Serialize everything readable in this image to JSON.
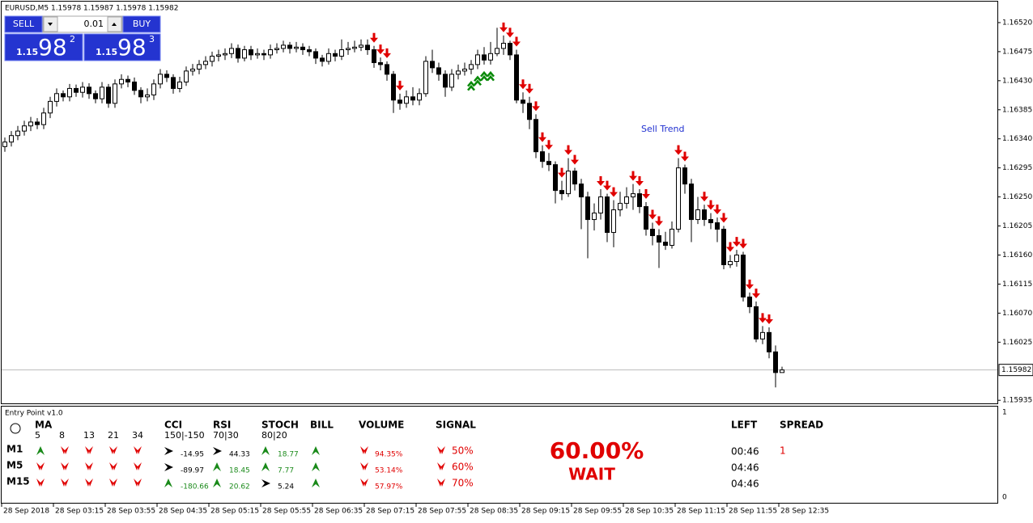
{
  "window": {
    "title": "EURUSD,M5  1.15978 1.15987 1.15978 1.15982"
  },
  "trade_panel": {
    "sell": "SELL",
    "buy": "BUY",
    "lot": "0.01",
    "sell_big": "1.15",
    "sell_pips": "98",
    "sell_point": "2",
    "buy_big": "1.15",
    "buy_pips": "98",
    "buy_point": "3"
  },
  "chart_data": {
    "type": "candlestick",
    "annotation": "Sell Trend",
    "ylim": [
      1.15929,
      1.16555
    ],
    "yticks": [
      {
        "value": 1.1652,
        "label": "1.16520"
      },
      1.16475,
      {
        "value": 1.1643,
        "label": "1.16430"
      },
      1.16385,
      {
        "value": 1.1634,
        "label": "1.16340"
      },
      1.16295,
      {
        "value": 1.1625,
        "label": "1.16250"
      },
      1.16205,
      {
        "value": 1.1616,
        "label": "1.16160"
      },
      1.16115,
      {
        "value": 1.1607,
        "label": "1.16070"
      },
      1.16025,
      1.15935
    ],
    "current_price": 1.15982,
    "time_labels": [
      "28 Sep 2018",
      "28 Sep 03:15",
      "28 Sep 03:55",
      "28 Sep 04:35",
      "28 Sep 05:15",
      "28 Sep 05:55",
      "28 Sep 06:35",
      "28 Sep 07:15",
      "28 Sep 07:55",
      "28 Sep 08:35",
      "28 Sep 09:15",
      "28 Sep 09:55",
      "28 Sep 10:35",
      "28 Sep 11:15",
      "28 Sep 11:55",
      "28 Sep 12:35"
    ],
    "open": [
      1.16328,
      1.16335,
      1.16345,
      1.16352,
      1.1636,
      1.16366,
      1.16362,
      1.1638,
      1.16398,
      1.1641,
      1.16405,
      1.16418,
      1.16412,
      1.1642,
      1.1641,
      1.16402,
      1.1642,
      1.16395,
      1.16425,
      1.16432,
      1.16428,
      1.16415,
      1.16405,
      1.16408,
      1.16425,
      1.1644,
      1.16435,
      1.16418,
      1.16428,
      1.16445,
      1.16448,
      1.16455,
      1.1646,
      1.16468,
      1.1647,
      1.16472,
      1.1648,
      1.16465,
      1.16478,
      1.1647,
      1.16472,
      1.1647,
      1.16478,
      1.1648,
      1.16485,
      1.1648,
      1.16482,
      1.16478,
      1.16475,
      1.16465,
      1.1646,
      1.16472,
      1.16468,
      1.16478,
      1.1648,
      1.16482,
      1.16485,
      1.16478,
      1.16458,
      1.16455,
      1.1644,
      1.164,
      1.16395,
      1.16405,
      1.164,
      1.1641,
      1.1646,
      1.1645,
      1.1644,
      1.1642,
      1.1644,
      1.16445,
      1.16448,
      1.16455,
      1.1647,
      1.16462,
      1.16472,
      1.1648,
      1.16488,
      1.1647,
      1.164,
      1.16395,
      1.1637,
      1.1632,
      1.16305,
      1.163,
      1.1626,
      1.16255,
      1.1629,
      1.1627,
      1.1625,
      1.16215,
      1.16225,
      1.1625,
      1.16195,
      1.1623,
      1.1624,
      1.1625,
      1.16255,
      1.16235,
      1.162,
      1.1619,
      1.1618,
      1.16175,
      1.162,
      1.16295,
      1.1627,
      1.16215,
      1.1623,
      1.16215,
      1.1621,
      1.162,
      1.16145,
      1.1615,
      1.1616,
      1.16095,
      1.1608,
      1.1603,
      1.1604,
      1.1601,
      1.15978
    ],
    "high": [
      1.16342,
      1.16352,
      1.1636,
      1.16368,
      1.16374,
      1.16372,
      1.16388,
      1.16405,
      1.16418,
      1.16415,
      1.16425,
      1.16424,
      1.16428,
      1.16426,
      1.16415,
      1.16428,
      1.16425,
      1.16432,
      1.1644,
      1.16438,
      1.16435,
      1.1642,
      1.16418,
      1.16432,
      1.16448,
      1.16446,
      1.1644,
      1.16436,
      1.16452,
      1.16456,
      1.16462,
      1.16468,
      1.16475,
      1.16478,
      1.1648,
      1.16488,
      1.16486,
      1.16484,
      1.16484,
      1.1648,
      1.16478,
      1.16486,
      1.16488,
      1.16492,
      1.1649,
      1.1649,
      1.16488,
      1.16484,
      1.1648,
      1.1647,
      1.1648,
      1.16478,
      1.16494,
      1.1649,
      1.16492,
      1.16494,
      1.16494,
      1.16484,
      1.16466,
      1.1646,
      1.16445,
      1.1641,
      1.16415,
      1.1642,
      1.16418,
      1.16468,
      1.16478,
      1.16458,
      1.16446,
      1.16448,
      1.16455,
      1.16458,
      1.16462,
      1.16478,
      1.16482,
      1.1649,
      1.16512,
      1.165,
      1.16492,
      1.16478,
      1.16412,
      1.16405,
      1.16378,
      1.1633,
      1.16318,
      1.16305,
      1.16275,
      1.1631,
      1.16295,
      1.16278,
      1.16258,
      1.1624,
      1.16262,
      1.16255,
      1.16245,
      1.16258,
      1.16265,
      1.1627,
      1.16262,
      1.16242,
      1.1621,
      1.162,
      1.16196,
      1.16212,
      1.1631,
      1.163,
      1.16278,
      1.1625,
      1.16238,
      1.16225,
      1.16218,
      1.16205,
      1.1616,
      1.16168,
      1.16165,
      1.16102,
      1.16088,
      1.1605,
      1.16048,
      1.1602,
      1.15987
    ],
    "low": [
      1.1632,
      1.16328,
      1.16338,
      1.16345,
      1.16352,
      1.16355,
      1.16355,
      1.16372,
      1.1639,
      1.16398,
      1.16398,
      1.16405,
      1.16404,
      1.16402,
      1.16395,
      1.16395,
      1.16388,
      1.16388,
      1.16418,
      1.1642,
      1.16408,
      1.16395,
      1.16398,
      1.164,
      1.16418,
      1.16428,
      1.1641,
      1.16412,
      1.16422,
      1.16438,
      1.1644,
      1.16448,
      1.16452,
      1.1646,
      1.16462,
      1.16465,
      1.16458,
      1.1646,
      1.16462,
      1.16464,
      1.16462,
      1.16464,
      1.16472,
      1.16474,
      1.16472,
      1.16474,
      1.1647,
      1.16468,
      1.16456,
      1.16452,
      1.16455,
      1.1646,
      1.16462,
      1.1647,
      1.16474,
      1.16476,
      1.1647,
      1.1645,
      1.16446,
      1.1643,
      1.1638,
      1.16385,
      1.16388,
      1.16392,
      1.16392,
      1.16405,
      1.16442,
      1.1643,
      1.16405,
      1.16414,
      1.16432,
      1.16438,
      1.1644,
      1.16448,
      1.16455,
      1.16455,
      1.16468,
      1.1647,
      1.16462,
      1.16395,
      1.1638,
      1.16355,
      1.1631,
      1.16295,
      1.1629,
      1.1624,
      1.16245,
      1.1625,
      1.1626,
      1.162,
      1.16155,
      1.16198,
      1.16215,
      1.1618,
      1.16172,
      1.1622,
      1.16232,
      1.1623,
      1.16225,
      1.1619,
      1.16175,
      1.1614,
      1.16168,
      1.1617,
      1.16195,
      1.16255,
      1.1618,
      1.16208,
      1.16205,
      1.162,
      1.1618,
      1.16138,
      1.1614,
      1.16142,
      1.16088,
      1.1607,
      1.16025,
      1.16022,
      1.16,
      1.15955,
      1.15978
    ],
    "close": [
      1.16335,
      1.16345,
      1.16352,
      1.1636,
      1.16366,
      1.16362,
      1.1638,
      1.16398,
      1.1641,
      1.16405,
      1.16418,
      1.16412,
      1.1642,
      1.1641,
      1.16402,
      1.1642,
      1.16395,
      1.16425,
      1.16432,
      1.16428,
      1.16415,
      1.16405,
      1.16408,
      1.16425,
      1.1644,
      1.16435,
      1.16418,
      1.16428,
      1.16445,
      1.16448,
      1.16455,
      1.1646,
      1.16468,
      1.1647,
      1.16472,
      1.1648,
      1.16465,
      1.16478,
      1.1647,
      1.16472,
      1.1647,
      1.16478,
      1.1648,
      1.16485,
      1.1648,
      1.16482,
      1.16478,
      1.16475,
      1.16465,
      1.1646,
      1.16472,
      1.16468,
      1.16478,
      1.1648,
      1.16482,
      1.16485,
      1.16478,
      1.16458,
      1.16455,
      1.1644,
      1.164,
      1.16395,
      1.16405,
      1.164,
      1.1641,
      1.1646,
      1.1645,
      1.1644,
      1.1642,
      1.1644,
      1.16445,
      1.16448,
      1.16455,
      1.1647,
      1.16462,
      1.16472,
      1.1648,
      1.16488,
      1.1647,
      1.164,
      1.16395,
      1.1637,
      1.1632,
      1.16305,
      1.163,
      1.1626,
      1.16255,
      1.1629,
      1.1627,
      1.1625,
      1.16215,
      1.16225,
      1.1625,
      1.16195,
      1.1623,
      1.1624,
      1.1625,
      1.16255,
      1.16235,
      1.162,
      1.1619,
      1.1618,
      1.16175,
      1.162,
      1.16295,
      1.1627,
      1.16215,
      1.1623,
      1.16215,
      1.1621,
      1.162,
      1.16145,
      1.1615,
      1.1616,
      1.16095,
      1.1608,
      1.1603,
      1.1604,
      1.1601,
      1.15978,
      1.15982
    ],
    "sell_signals": [
      57,
      58,
      59,
      61,
      77,
      78,
      79,
      80,
      81,
      82,
      83,
      84,
      86,
      87,
      88,
      92,
      93,
      94,
      97,
      98,
      99,
      100,
      101,
      104,
      105,
      108,
      109,
      110,
      111,
      112,
      113,
      114,
      115,
      116,
      117,
      118
    ],
    "buy_signals": [
      72,
      73,
      74,
      75
    ]
  },
  "indicator_panel": {
    "title": "Entry Point v1.0",
    "axis_top": "1",
    "axis_bottom": "0",
    "headers": {
      "ma": "MA",
      "cci": "CCI",
      "rsi": "RSI",
      "stoch": "STOCH",
      "bill": "BILL",
      "volume": "VOLUME",
      "signal": "SIGNAL",
      "left": "LEFT",
      "spread": "SPREAD"
    },
    "ma_periods": [
      5,
      8,
      13,
      21,
      34
    ],
    "cci_levels": "150|-150",
    "rsi_levels": "70|30",
    "stoch_levels": "80|20",
    "rows": [
      {
        "tf": "M1",
        "ma": [
          "up",
          "down",
          "down",
          "down",
          "down"
        ],
        "cci": {
          "dir": "flat",
          "value": -14.95
        },
        "rsi": {
          "dir": "flat",
          "value": 44.33
        },
        "stoch": {
          "dir": "up",
          "value": 18.77
        },
        "bill": "up",
        "volume": {
          "dir": "down",
          "value": "94.35%"
        },
        "signal": {
          "dir": "down",
          "value": "50%"
        },
        "left": "00:46",
        "spread": 1
      },
      {
        "tf": "M5",
        "ma": [
          "down",
          "down",
          "down",
          "down",
          "down"
        ],
        "cci": {
          "dir": "flat",
          "value": -89.97
        },
        "rsi": {
          "dir": "up",
          "value": 18.45
        },
        "stoch": {
          "dir": "up",
          "value": 7.77
        },
        "bill": "up",
        "volume": {
          "dir": "down",
          "value": "53.14%"
        },
        "signal": {
          "dir": "down",
          "value": "60%"
        },
        "left": "04:46"
      },
      {
        "tf": "M15",
        "ma": [
          "down",
          "down",
          "down",
          "down",
          "down"
        ],
        "cci": {
          "dir": "up",
          "value": -180.66
        },
        "rsi": {
          "dir": "up",
          "value": 20.62
        },
        "stoch": {
          "dir": "flat",
          "value": 5.24
        },
        "bill": "up",
        "volume": {
          "dir": "down",
          "value": "57.97%"
        },
        "signal": {
          "dir": "down",
          "value": "70%"
        },
        "left": "04:46"
      }
    ],
    "result": "60.00%",
    "status": "WAIT"
  }
}
